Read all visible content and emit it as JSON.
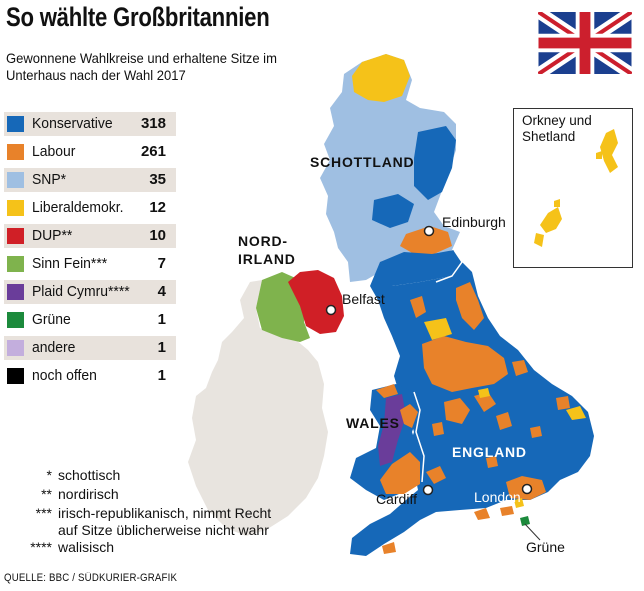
{
  "title": "So wählte Großbritannien",
  "subtitle": "Gewonnene Wahlkreise und erhaltene Sitze im Unterhaus nach der Wahl 2017",
  "legend": [
    {
      "name": "Konservative",
      "seats": "318",
      "color": "#1668b8"
    },
    {
      "name": "Labour",
      "seats": "261",
      "color": "#e8822a"
    },
    {
      "name": "SNP*",
      "seats": "35",
      "color": "#9fbfe2"
    },
    {
      "name": "Liberaldemokr.",
      "seats": "12",
      "color": "#f5c219"
    },
    {
      "name": "DUP**",
      "seats": "10",
      "color": "#d01f26"
    },
    {
      "name": "Sinn Fein***",
      "seats": "7",
      "color": "#7fb34d"
    },
    {
      "name": "Plaid Cymru****",
      "seats": "4",
      "color": "#6a3d9a"
    },
    {
      "name": "Grüne",
      "seats": "1",
      "color": "#1c8a3c"
    },
    {
      "name": "andere",
      "seats": "1",
      "color": "#c3aedd"
    },
    {
      "name": "noch offen",
      "seats": "1",
      "color": "#000000"
    }
  ],
  "footnotes": [
    {
      "symbol": "*",
      "text": "schottisch"
    },
    {
      "symbol": "**",
      "text": "nordirisch"
    },
    {
      "symbol": "***",
      "text": "irisch-republikanisch, nimmt Recht"
    },
    {
      "symbol": "",
      "text": "auf Sitze üblicherweise nicht wahr"
    },
    {
      "symbol": "****",
      "text": "walisisch"
    }
  ],
  "source": "QUELLE: BBC / SÜDKURIER-GRAFIK",
  "regions": {
    "scotland": "SCHOTTLAND",
    "northern_ireland_1": "NORD-",
    "northern_ireland_2": "IRLAND",
    "wales": "WALES",
    "england": "ENGLAND"
  },
  "cities": {
    "edinburgh": "Edinburgh",
    "belfast": "Belfast",
    "cardiff": "Cardiff",
    "london": "London",
    "gruene": "Grüne"
  },
  "inset": {
    "line1": "Orkney und",
    "line2": "Shetland"
  }
}
